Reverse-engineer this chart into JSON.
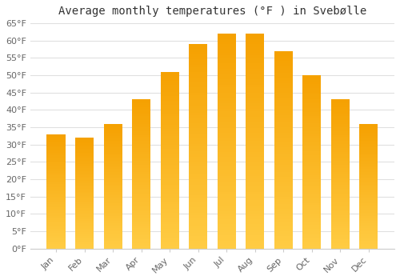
{
  "months": [
    "Jan",
    "Feb",
    "Mar",
    "Apr",
    "May",
    "Jun",
    "Jul",
    "Aug",
    "Sep",
    "Oct",
    "Nov",
    "Dec"
  ],
  "values": [
    33,
    32,
    36,
    43,
    51,
    59,
    62,
    62,
    57,
    50,
    43,
    36
  ],
  "title": "Average monthly temperatures (°F ) in Svebølle",
  "ylim": [
    0,
    65
  ],
  "yticks": [
    0,
    5,
    10,
    15,
    20,
    25,
    30,
    35,
    40,
    45,
    50,
    55,
    60,
    65
  ],
  "bar_color_main": "#FDB940",
  "bar_color_edge": "#F5A800",
  "background_color": "#ffffff",
  "grid_color": "#e0e0e0",
  "title_fontsize": 10,
  "tick_fontsize": 8,
  "bar_width": 0.65
}
